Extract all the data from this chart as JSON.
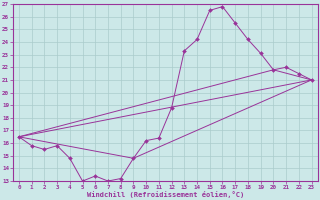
{
  "xlabel": "Windchill (Refroidissement éolien,°C)",
  "bg_color": "#cce8e8",
  "line_color": "#993399",
  "grid_color": "#aacccc",
  "spine_color": "#993399",
  "xlim": [
    -0.5,
    23.5
  ],
  "ylim": [
    13,
    27
  ],
  "yticks": [
    13,
    14,
    15,
    16,
    17,
    18,
    19,
    20,
    21,
    22,
    23,
    24,
    25,
    26,
    27
  ],
  "xticks": [
    0,
    1,
    2,
    3,
    4,
    5,
    6,
    7,
    8,
    9,
    10,
    11,
    12,
    13,
    14,
    15,
    16,
    17,
    18,
    19,
    20,
    21,
    22,
    23
  ],
  "line1_x": [
    0,
    1,
    2,
    3,
    4,
    5,
    6,
    7,
    8,
    9,
    10,
    11,
    12,
    13,
    14,
    15,
    16,
    17,
    18,
    19,
    20,
    21,
    22,
    23
  ],
  "line1_y": [
    16.5,
    15.8,
    15.5,
    15.8,
    14.8,
    13.0,
    13.4,
    13.0,
    13.2,
    14.8,
    16.2,
    16.4,
    18.8,
    23.3,
    24.2,
    26.5,
    26.8,
    25.5,
    24.2,
    23.1,
    21.8,
    22.0,
    21.5,
    21.0
  ],
  "line2_x": [
    0,
    23
  ],
  "line2_y": [
    16.5,
    21.0
  ],
  "line3_x": [
    0,
    9,
    23
  ],
  "line3_y": [
    16.5,
    14.8,
    21.0
  ],
  "line4_x": [
    0,
    20,
    23
  ],
  "line4_y": [
    16.5,
    21.8,
    21.0
  ]
}
